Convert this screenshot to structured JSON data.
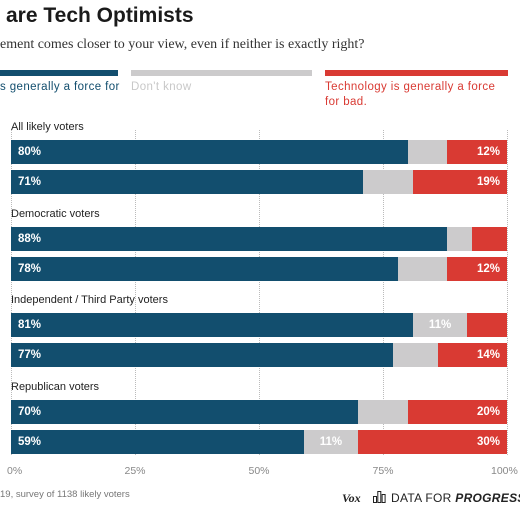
{
  "header": {
    "title": "are Tech Optimists",
    "subtitle": "ement comes closer to your view, even if neither is exactly right?"
  },
  "legend": {
    "good": "s generally a force for",
    "dontknow": "Don't know",
    "bad": "Technology is generally a force for bad."
  },
  "colors": {
    "good": "#124e6e",
    "dontknow": "#cccbcc",
    "bad": "#d93a33"
  },
  "chart_data": {
    "type": "bar",
    "orientation": "horizontal",
    "stacked": true,
    "title": "are Tech Optimists",
    "subtitle": "ement comes closer to your view, even if neither is exactly right?",
    "xlim": [
      0,
      100
    ],
    "ticks": [
      "0%",
      "25%",
      "50%",
      "75%",
      "100%"
    ],
    "grid": true,
    "legend_position": "top",
    "segments": [
      "good",
      "dontknow",
      "bad"
    ],
    "groups": [
      {
        "label": "All likely voters",
        "bars": [
          {
            "values": [
              80,
              8,
              12
            ],
            "labels": [
              "80%",
              "",
              "12%"
            ]
          },
          {
            "values": [
              71,
              10,
              19
            ],
            "labels": [
              "71%",
              "",
              "19%"
            ]
          }
        ]
      },
      {
        "label": "Democratic voters",
        "bars": [
          {
            "values": [
              88,
              5,
              7
            ],
            "labels": [
              "88%",
              "",
              ""
            ]
          },
          {
            "values": [
              78,
              10,
              12
            ],
            "labels": [
              "78%",
              "",
              "12%"
            ]
          }
        ]
      },
      {
        "label": "Independent / Third Party voters",
        "bars": [
          {
            "values": [
              81,
              11,
              8
            ],
            "labels": [
              "81%",
              "11%",
              ""
            ]
          },
          {
            "values": [
              77,
              9,
              14
            ],
            "labels": [
              "77%",
              "",
              "14%"
            ]
          }
        ]
      },
      {
        "label": "Republican voters",
        "bars": [
          {
            "values": [
              70,
              10,
              20
            ],
            "labels": [
              "70%",
              "",
              "20%"
            ]
          },
          {
            "values": [
              59,
              11,
              30
            ],
            "labels": [
              "59%",
              "11%",
              "30%"
            ]
          }
        ]
      }
    ]
  },
  "footer": {
    "source": "19, survey of 1138 likely voters",
    "vox": "Vox",
    "dfp_plain": "DATA FOR ",
    "dfp_bold": "PROGRESS"
  }
}
